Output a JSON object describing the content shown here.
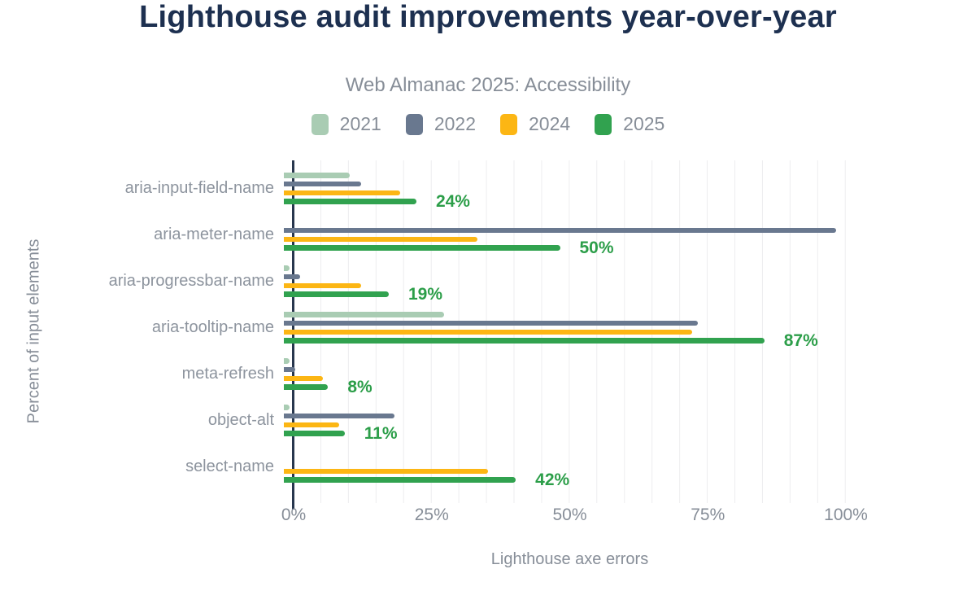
{
  "chart_data": {
    "type": "bar",
    "orientation": "horizontal",
    "title": "Lighthouse audit improvements year-over-year",
    "subtitle": "Web Almanac 2025: Accessibility",
    "xlabel": "Lighthouse axe errors",
    "ylabel": "Percent of input elements",
    "xlim": [
      0,
      100
    ],
    "x_ticks": [
      {
        "value": 0,
        "label": "0%"
      },
      {
        "value": 25,
        "label": "25%"
      },
      {
        "value": 50,
        "label": "50%"
      },
      {
        "value": 75,
        "label": "75%"
      },
      {
        "value": 100,
        "label": "100%"
      }
    ],
    "grid": "vertical lines every 5%",
    "legend_position": "top",
    "categories": [
      "aria-input-field-name",
      "aria-meter-name",
      "aria-progressbar-name",
      "aria-tooltip-name",
      "meta-refresh",
      "object-alt",
      "select-name"
    ],
    "series": [
      {
        "name": "2021",
        "color": "#a9ccb3",
        "values": [
          12,
          null,
          1,
          29,
          1,
          1,
          null
        ]
      },
      {
        "name": "2022",
        "color": "#69788f",
        "values": [
          14,
          100,
          3,
          75,
          2,
          20,
          null
        ]
      },
      {
        "name": "2024",
        "color": "#fcb614",
        "values": [
          21,
          35,
          14,
          74,
          7,
          10,
          37
        ]
      },
      {
        "name": "2025",
        "color": "#31a24f",
        "values": [
          24,
          50,
          19,
          87,
          8,
          11,
          42
        ]
      }
    ],
    "data_labels": {
      "series": "2025",
      "values": [
        "24%",
        "50%",
        "19%",
        "87%",
        "8%",
        "11%",
        "42%"
      ]
    }
  },
  "colors": {
    "title": "#1d3050",
    "muted_text": "#878e98",
    "category_text": "#8d949e",
    "axis_line": "#28374e",
    "gridline": "#ededef",
    "data_label": "#2c9e49",
    "background": "#ffffff"
  }
}
